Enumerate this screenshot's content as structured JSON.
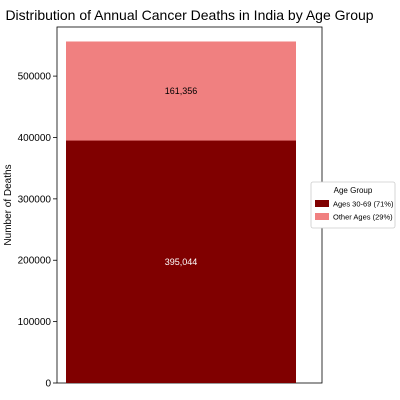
{
  "chart_data": {
    "type": "bar",
    "stacked": true,
    "title": "Distribution of Annual Cancer Deaths in India by Age Group",
    "xlabel": "",
    "ylabel": "Number of Deaths",
    "ylim": [
      0,
      580000
    ],
    "yticks": [
      0,
      100000,
      200000,
      300000,
      400000,
      500000
    ],
    "ytick_labels": [
      "0",
      "100000",
      "200000",
      "300000",
      "400000",
      "500000"
    ],
    "categories": [
      ""
    ],
    "series": [
      {
        "name": "Ages 30-69 (71%)",
        "values": [
          395044
        ],
        "label": "395,044",
        "color": "#800000"
      },
      {
        "name": "Other Ages (29%)",
        "values": [
          161356
        ],
        "label": "161,356",
        "color": "#f08080"
      }
    ],
    "legend": {
      "title": "Age Group",
      "placement": "center-right"
    },
    "grid": false
  }
}
